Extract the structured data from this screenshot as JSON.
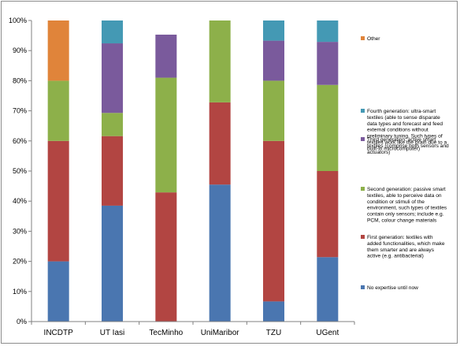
{
  "chart_data": {
    "type": "bar",
    "stacked": true,
    "categories": [
      "INCDTP",
      "UT Iasi",
      "TecMinho",
      "UniMaribor",
      "TZU",
      "UGent"
    ],
    "ylim": [
      0,
      100
    ],
    "yticks": [
      "0%",
      "10%",
      "20%",
      "30%",
      "40%",
      "50%",
      "60%",
      "70%",
      "80%",
      "90%",
      "100%"
    ],
    "grid": false,
    "legend_position": "right",
    "series": [
      {
        "name": "No expertise until now",
        "color": "#4a76b0",
        "values": [
          20,
          38.5,
          0,
          45.5,
          6.7,
          21.4
        ],
        "legend_lines": [
          "No expertise until now"
        ]
      },
      {
        "name": "First generation: textiles with added functionalities, which make them smarter and are always active (e.g. antibacterial)",
        "color": "#b24542",
        "values": [
          40,
          23.1,
          42.9,
          27.3,
          53.3,
          28.6
        ],
        "legend_lines": [
          "First generation: textiles with",
          "added functionalities, which make",
          "them smarter and are always",
          "active (e.g. antibacterial)"
        ]
      },
      {
        "name": "Second generation: passive smart textiles, able to perceive data on condition or stimuli of the environment, such types of textiles contain only sensors; include e.g. PCM, colour change materials",
        "color": "#8db04a",
        "values": [
          20,
          7.7,
          38.1,
          27.2,
          20,
          28.6
        ],
        "legend_lines": [
          "Second generation: passive smart",
          "textiles, able to perceive data on",
          "condition or stimuli of the",
          "environment, such types of textiles",
          "contain only sensors; include e.g.",
          "PCM, colour change materials"
        ]
      },
      {
        "name": "Third generation: active smart textiles (comprise both sensors and actuators)",
        "color": "#7a5a9c",
        "values": [
          0,
          23.1,
          14.3,
          0,
          13.3,
          14.3
        ],
        "legend_lines": [
          "Third generation: active smart",
          "textiles (comprise both sensors and",
          "actuators)"
        ]
      },
      {
        "name": "Fourth generation: ultra-smart textiles (able to sense disparate data types and forecast and feed external conditions without preliminary tuning. Such types of textiles work like the brain due to a built-in microcomputer)",
        "color": "#4499b4",
        "values": [
          0,
          7.6,
          0,
          0,
          6.7,
          7.1
        ],
        "legend_lines": [
          "Fourth generation: ultra-smart",
          "textiles (able to sense disparate",
          "data types and forecast and feed",
          "external conditions without",
          "preliminary tuning. Such types of",
          "textiles work like the brain due to a",
          "built-in microcomputer)"
        ]
      },
      {
        "name": "Other",
        "color": "#e0843a",
        "values": [
          20,
          0,
          0,
          0,
          0,
          0
        ],
        "legend_lines": [
          "Other"
        ]
      }
    ]
  }
}
